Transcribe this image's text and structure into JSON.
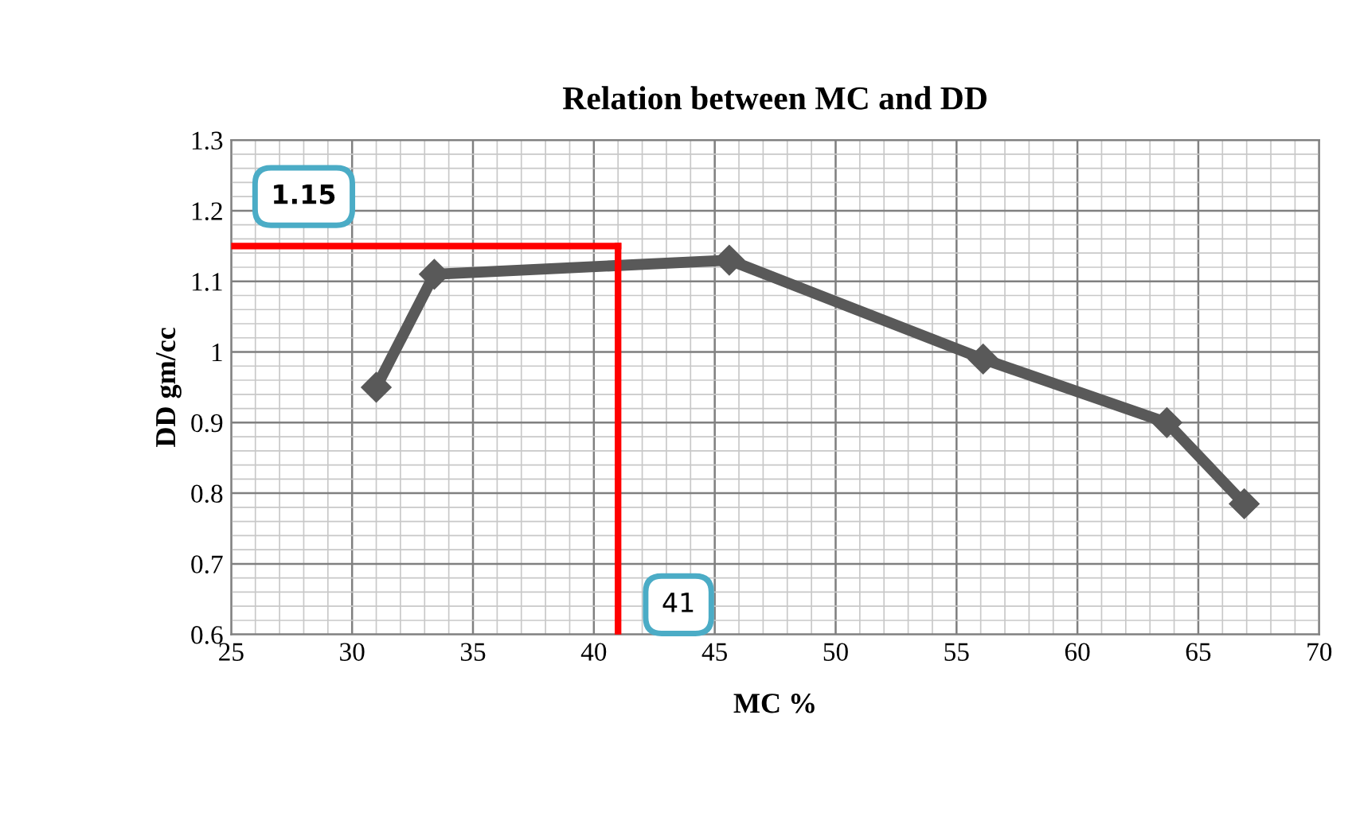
{
  "chart_data": {
    "type": "line",
    "title": "Relation between MC and DD",
    "xlabel": "MC %",
    "ylabel": "DD gm/cc",
    "x": [
      31,
      33.4,
      45.6,
      56.1,
      63.7,
      66.9
    ],
    "series": [
      {
        "color": "#595959",
        "values": [
          0.95,
          1.11,
          1.13,
          0.99,
          0.9,
          0.785
        ]
      }
    ],
    "marker": "diamond",
    "line_style": "solid",
    "grid": true,
    "legend": false,
    "xlim": [
      25,
      70
    ],
    "xticks": [
      25,
      30,
      35,
      40,
      45,
      50,
      55,
      60,
      65,
      70
    ],
    "ylim": [
      0.6,
      1.3
    ],
    "yticks": [
      0.6,
      0.7,
      0.8,
      0.9,
      1,
      1.1,
      1.2,
      1.3
    ],
    "ref_lines": [
      {
        "axis": "x",
        "value": 41,
        "label": "41",
        "color": "#ff0000"
      },
      {
        "axis": "y",
        "value": 1.15,
        "label": "1.15",
        "color": "#ff0000"
      }
    ]
  }
}
